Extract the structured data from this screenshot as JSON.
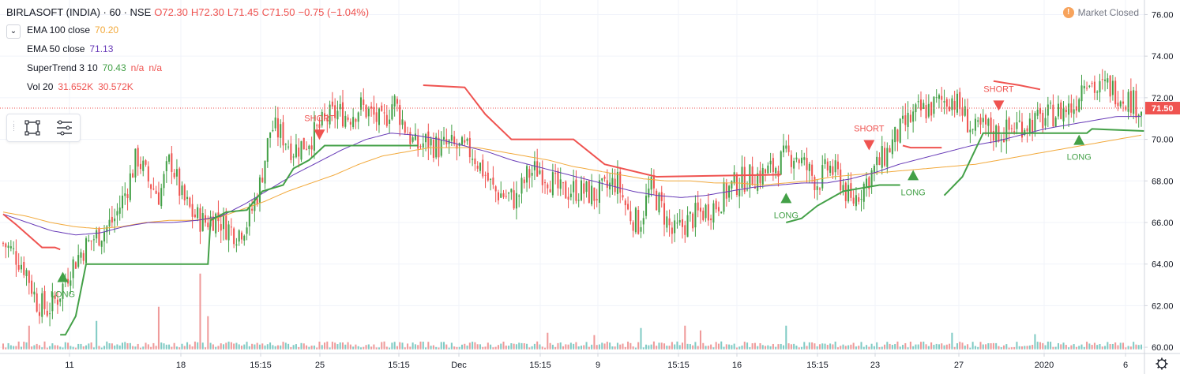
{
  "header": {
    "symbol": "BIRLASOFT (INDIA) · 60 · NSE",
    "open": "O72.30",
    "high": "H72.30",
    "low": "L71.45",
    "close": "C71.50",
    "change": "−0.75 (−1.04%)"
  },
  "indicators": [
    {
      "name": "EMA 100 close",
      "values": [
        "70.20"
      ],
      "colors": [
        "#f2a93b"
      ]
    },
    {
      "name": "EMA 50 close",
      "values": [
        "71.13"
      ],
      "colors": [
        "#673ab7"
      ]
    },
    {
      "name": "SuperTrend 3 10",
      "values": [
        "70.43",
        "n/a",
        "n/a"
      ],
      "colors": [
        "#43a047",
        "#ef5350",
        "#ef5350"
      ]
    },
    {
      "name": "Vol 20",
      "values": [
        "31.652K",
        "30.572K"
      ],
      "colors": [
        "#ef5350",
        "#ef5350"
      ]
    }
  ],
  "market_status": {
    "icon": "exclamation-icon",
    "text": "Market Closed"
  },
  "toolbar": {
    "icons": [
      "object-tree-icon",
      "data-window-icon"
    ]
  },
  "colors": {
    "up": "#43a047",
    "down": "#ef5350",
    "ema100": "#f2a93b",
    "ema50": "#673ab7",
    "st_up": "#43a047",
    "st_down": "#ef5350",
    "vol_up": "#80cbc4",
    "vol_down": "#ef9a9a"
  },
  "chart_data": {
    "type": "candlestick",
    "y_range": [
      59.7,
      76.7
    ],
    "y_ticks": [
      "60.00",
      "62.00",
      "64.00",
      "66.00",
      "68.00",
      "70.00",
      "72.00",
      "74.00",
      "76.00"
    ],
    "last_price": "71.50",
    "x_labels": [
      "11",
      "18",
      "15:15",
      "25",
      "15:15",
      "Dec",
      "15:15",
      "9",
      "15:15",
      "16",
      "15:15",
      "23",
      "27",
      "2020",
      "6"
    ],
    "close_path": [
      65.0,
      64.5,
      63.8,
      62.2,
      61.8,
      62.5,
      63.8,
      64.6,
      65.2,
      65.6,
      66.2,
      67.5,
      69.2,
      68.0,
      67.3,
      69.1,
      67.2,
      66.4,
      66.0,
      66.3,
      65.8,
      65.5,
      66.1,
      67.8,
      70.6,
      70.2,
      69.5,
      69.8,
      70.3,
      71.0,
      71.3,
      71.1,
      71.6,
      71.2,
      70.7,
      71.9,
      70.6,
      69.6,
      69.9,
      69.6,
      69.7,
      69.5,
      69.4,
      68.5,
      67.5,
      67.3,
      67.1,
      68.3,
      68.6,
      68.1,
      67.4,
      67.6,
      67.5,
      67.3,
      67.6,
      68.0,
      66.5,
      65.9,
      67.7,
      66.7,
      65.4,
      65.9,
      66.3,
      66.6,
      66.9,
      67.6,
      68.0,
      68.2,
      68.3,
      68.6,
      69.1,
      69.3,
      68.6,
      67.9,
      68.7,
      68.1,
      66.9,
      67.7,
      68.5,
      69.2,
      70.1,
      70.8,
      71.3,
      71.5,
      71.8,
      72.0,
      71.3,
      70.3,
      70.6,
      70.3,
      70.4,
      70.7,
      70.8,
      70.9,
      71.2,
      71.4,
      71.6,
      73.2,
      72.3,
      72.6,
      72.2,
      71.9,
      71.5
    ],
    "ema100_path": [
      66.5,
      66.3,
      66.0,
      65.8,
      65.7,
      65.8,
      66.0,
      66.1,
      66.1,
      66.2,
      66.6,
      67.0,
      67.5,
      67.9,
      68.3,
      68.8,
      69.2,
      69.4,
      69.6,
      69.6,
      69.6,
      69.4,
      69.2,
      69.0,
      68.7,
      68.5,
      68.3,
      68.1,
      68.0,
      68.0,
      67.9,
      67.9,
      67.8,
      67.9,
      68.0,
      68.2,
      68.3,
      68.4,
      68.5,
      68.6,
      68.7,
      68.8,
      69.0,
      69.2,
      69.4,
      69.6,
      69.8,
      70.0,
      70.2
    ],
    "ema50_path": [
      66.4,
      66.0,
      65.6,
      65.4,
      65.5,
      65.8,
      66.0,
      66.0,
      66.1,
      66.3,
      66.9,
      67.6,
      68.3,
      68.9,
      69.5,
      70.0,
      70.3,
      70.2,
      70.0,
      69.7,
      69.4,
      69.0,
      68.7,
      68.4,
      68.1,
      67.8,
      67.5,
      67.3,
      67.2,
      67.3,
      67.5,
      67.7,
      67.8,
      67.9,
      67.9,
      68.1,
      68.4,
      68.8,
      69.1,
      69.4,
      69.7,
      69.9,
      70.2,
      70.5,
      70.7,
      70.9,
      71.1,
      71.1
    ],
    "supertrend_segments": [
      {
        "trend": "down",
        "points": [
          [
            0,
            66.4
          ],
          [
            5,
            65.9
          ],
          [
            15,
            64.8
          ],
          [
            20,
            64.8
          ],
          [
            22,
            64.7
          ]
        ]
      },
      {
        "trend": "up",
        "points": [
          [
            22,
            60.6
          ],
          [
            24,
            60.6
          ],
          [
            28,
            61.5
          ],
          [
            32,
            64.0
          ],
          [
            79,
            64.0
          ],
          [
            80,
            66.1
          ],
          [
            86,
            66.5
          ],
          [
            94,
            66.6
          ],
          [
            100,
            67.5
          ],
          [
            108,
            67.8
          ],
          [
            112,
            68.6
          ],
          [
            118,
            69.0
          ],
          [
            124,
            69.7
          ],
          [
            160,
            69.7
          ]
        ]
      },
      {
        "trend": "down",
        "points": [
          [
            162,
            72.6
          ],
          [
            178,
            72.5
          ],
          [
            186,
            71.2
          ],
          [
            196,
            70.0
          ],
          [
            220,
            70.0
          ],
          [
            232,
            68.8
          ],
          [
            252,
            68.2
          ],
          [
            300,
            68.3
          ]
        ]
      },
      {
        "trend": "up",
        "points": [
          [
            302,
            66.0
          ],
          [
            308,
            66.2
          ],
          [
            314,
            66.8
          ],
          [
            324,
            67.5
          ],
          [
            338,
            67.8
          ],
          [
            346,
            67.8
          ]
        ]
      },
      {
        "trend": "down",
        "points": [
          [
            347,
            69.7
          ],
          [
            350,
            69.6
          ],
          [
            362,
            69.6
          ]
        ]
      },
      {
        "trend": "up",
        "points": [
          [
            363,
            67.3
          ],
          [
            370,
            68.2
          ],
          [
            378,
            70.3
          ],
          [
            386,
            70.3
          ],
          [
            398,
            70.3
          ],
          [
            418,
            70.3
          ],
          [
            420,
            70.5
          ],
          [
            440,
            70.4
          ]
        ]
      },
      {
        "trend": "down",
        "points": [
          [
            382,
            72.8
          ],
          [
            392,
            72.6
          ],
          [
            400,
            72.4
          ]
        ]
      }
    ],
    "signals": [
      {
        "type": "LONG",
        "index": 23,
        "price": 63.4
      },
      {
        "type": "SHORT",
        "index": 122,
        "price": 70.2
      },
      {
        "type": "LONG",
        "index": 302,
        "price": 67.2
      },
      {
        "type": "SHORT",
        "index": 334,
        "price": 69.7
      },
      {
        "type": "LONG",
        "index": 351,
        "price": 68.3
      },
      {
        "type": "SHORT",
        "index": 384,
        "price": 71.6
      },
      {
        "type": "LONG",
        "index": 415,
        "price": 70.0
      }
    ],
    "volume_spikes": [
      [
        60,
        0.9
      ],
      [
        76,
        1.6
      ],
      [
        79,
        0.7
      ],
      [
        36,
        0.6
      ],
      [
        10,
        0.5
      ],
      [
        210,
        0.35
      ],
      [
        228,
        0.3
      ],
      [
        246,
        0.45
      ],
      [
        263,
        0.5
      ],
      [
        269,
        0.4
      ],
      [
        302,
        0.5
      ],
      [
        366,
        0.35
      ],
      [
        398,
        0.32
      ]
    ]
  }
}
